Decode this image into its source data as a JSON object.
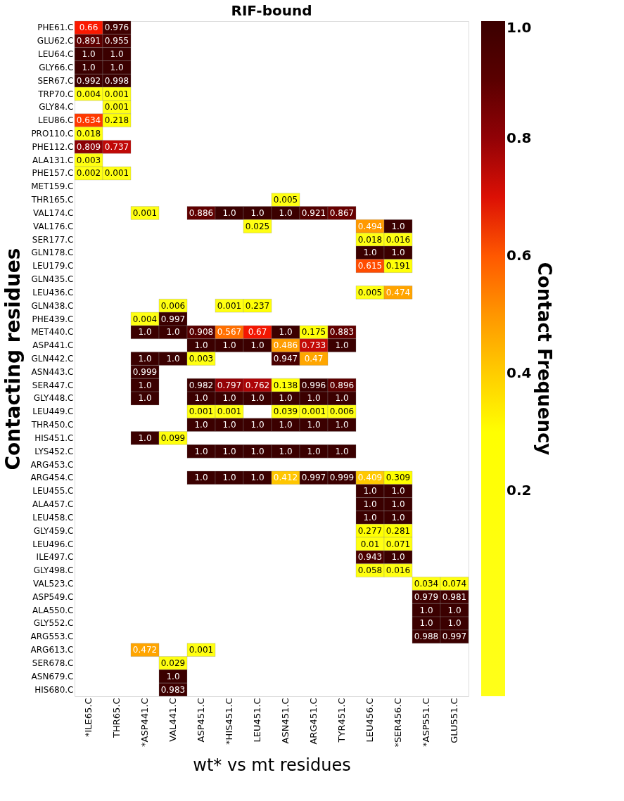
{
  "chart_data": {
    "type": "heatmap",
    "title": "RIF-bound",
    "xlabel": "wt* vs mt residues",
    "ylabel": "Contacting residues",
    "clabel": "Contact Frequency",
    "categories": [
      "*ILE65.C",
      "THR65.C",
      "*ASP441.C",
      "VAL441.C",
      "ASP451.C",
      "*HIS451.C",
      "LEU451.C",
      "ASN451.C",
      "ARG451.C",
      "TYR451.C",
      "LEU456.C",
      "*SER456.C",
      "*ASP551.C",
      "GLU551.C"
    ],
    "y_categories": [
      "PHE61.C",
      "GLU62.C",
      "LEU64.C",
      "GLY66.C",
      "SER67.C",
      "TRP70.C",
      "GLY84.C",
      "LEU86.C",
      "PRO110.C",
      "PHE112.C",
      "ALA131.C",
      "PHE157.C",
      "MET159.C",
      "THR165.C",
      "VAL174.C",
      "VAL176.C",
      "SER177.C",
      "GLN178.C",
      "LEU179.C",
      "GLN435.C",
      "LEU436.C",
      "GLN438.C",
      "PHE439.C",
      "MET440.C",
      "ASP441.C",
      "GLN442.C",
      "ASN443.C",
      "SER447.C",
      "GLY448.C",
      "LEU449.C",
      "THR450.C",
      "HIS451.C",
      "LYS452.C",
      "ARG453.C",
      "ARG454.C",
      "LEU455.C",
      "ALA457.C",
      "LEU458.C",
      "GLY459.C",
      "LEU496.C",
      "ILE497.C",
      "GLY498.C",
      "VAL523.C",
      "ASP549.C",
      "ALA550.C",
      "GLY552.C",
      "ARG553.C",
      "ARG613.C",
      "SER678.C",
      "ASN679.C",
      "HIS680.C"
    ],
    "cells": [
      [
        0.66,
        0.976,
        null,
        null,
        null,
        null,
        null,
        null,
        null,
        null,
        null,
        null,
        null,
        null
      ],
      [
        0.891,
        0.955,
        null,
        null,
        null,
        null,
        null,
        null,
        null,
        null,
        null,
        null,
        null,
        null
      ],
      [
        1.0,
        1.0,
        null,
        null,
        null,
        null,
        null,
        null,
        null,
        null,
        null,
        null,
        null,
        null
      ],
      [
        1.0,
        1.0,
        null,
        null,
        null,
        null,
        null,
        null,
        null,
        null,
        null,
        null,
        null,
        null
      ],
      [
        0.992,
        0.998,
        null,
        null,
        null,
        null,
        null,
        null,
        null,
        null,
        null,
        null,
        null,
        null
      ],
      [
        0.004,
        0.001,
        null,
        null,
        null,
        null,
        null,
        null,
        null,
        null,
        null,
        null,
        null,
        null
      ],
      [
        null,
        0.001,
        null,
        null,
        null,
        null,
        null,
        null,
        null,
        null,
        null,
        null,
        null,
        null
      ],
      [
        0.634,
        0.218,
        null,
        null,
        null,
        null,
        null,
        null,
        null,
        null,
        null,
        null,
        null,
        null
      ],
      [
        0.018,
        null,
        null,
        null,
        null,
        null,
        null,
        null,
        null,
        null,
        null,
        null,
        null,
        null
      ],
      [
        0.809,
        0.737,
        null,
        null,
        null,
        null,
        null,
        null,
        null,
        null,
        null,
        null,
        null,
        null
      ],
      [
        0.003,
        null,
        null,
        null,
        null,
        null,
        null,
        null,
        null,
        null,
        null,
        null,
        null,
        null
      ],
      [
        0.002,
        0.001,
        null,
        null,
        null,
        null,
        null,
        null,
        null,
        null,
        null,
        null,
        null,
        null
      ],
      [
        null,
        null,
        null,
        null,
        null,
        null,
        null,
        null,
        null,
        null,
        null,
        null,
        null,
        null
      ],
      [
        null,
        null,
        null,
        null,
        null,
        null,
        null,
        0.005,
        null,
        null,
        null,
        null,
        null,
        null
      ],
      [
        null,
        null,
        0.001,
        null,
        0.886,
        1.0,
        1.0,
        1.0,
        0.921,
        0.867,
        null,
        null,
        null,
        null
      ],
      [
        null,
        null,
        null,
        null,
        null,
        null,
        0.025,
        null,
        null,
        null,
        0.494,
        1.0,
        null,
        null
      ],
      [
        null,
        null,
        null,
        null,
        null,
        null,
        null,
        null,
        null,
        null,
        0.018,
        0.016,
        null,
        null
      ],
      [
        null,
        null,
        null,
        null,
        null,
        null,
        null,
        null,
        null,
        null,
        1.0,
        1.0,
        null,
        null
      ],
      [
        null,
        null,
        null,
        null,
        null,
        null,
        null,
        null,
        null,
        null,
        0.615,
        0.191,
        null,
        null
      ],
      [
        null,
        null,
        null,
        null,
        null,
        null,
        null,
        null,
        null,
        null,
        null,
        null,
        null,
        null
      ],
      [
        null,
        null,
        null,
        null,
        null,
        null,
        null,
        null,
        null,
        null,
        0.005,
        0.474,
        null,
        null
      ],
      [
        null,
        null,
        null,
        0.006,
        null,
        0.001,
        0.237,
        null,
        null,
        null,
        null,
        null,
        null,
        null
      ],
      [
        null,
        null,
        0.004,
        0.997,
        null,
        null,
        null,
        null,
        null,
        null,
        null,
        null,
        null,
        null
      ],
      [
        null,
        null,
        1.0,
        1.0,
        0.908,
        0.567,
        0.67,
        1.0,
        0.175,
        0.883,
        null,
        null,
        null,
        null
      ],
      [
        null,
        null,
        null,
        null,
        1.0,
        1.0,
        1.0,
        0.486,
        0.733,
        1.0,
        null,
        null,
        null,
        null
      ],
      [
        null,
        null,
        1.0,
        1.0,
        0.003,
        null,
        null,
        0.947,
        0.47,
        null,
        null,
        null,
        null,
        null
      ],
      [
        null,
        null,
        0.999,
        null,
        null,
        null,
        null,
        null,
        null,
        null,
        null,
        null,
        null,
        null
      ],
      [
        null,
        null,
        1.0,
        null,
        0.982,
        0.797,
        0.762,
        0.138,
        0.996,
        0.896,
        null,
        null,
        null,
        null
      ],
      [
        null,
        null,
        1.0,
        null,
        1.0,
        1.0,
        1.0,
        1.0,
        1.0,
        1.0,
        null,
        null,
        null,
        null
      ],
      [
        null,
        null,
        null,
        null,
        0.001,
        0.001,
        null,
        0.039,
        0.001,
        0.006,
        null,
        null,
        null,
        null
      ],
      [
        null,
        null,
        null,
        null,
        1.0,
        1.0,
        1.0,
        1.0,
        1.0,
        1.0,
        null,
        null,
        null,
        null
      ],
      [
        null,
        null,
        1.0,
        0.099,
        null,
        null,
        null,
        null,
        null,
        null,
        null,
        null,
        null,
        null
      ],
      [
        null,
        null,
        null,
        null,
        1.0,
        1.0,
        1.0,
        1.0,
        1.0,
        1.0,
        null,
        null,
        null,
        null
      ],
      [
        null,
        null,
        null,
        null,
        null,
        null,
        null,
        null,
        null,
        null,
        null,
        null,
        null,
        null
      ],
      [
        null,
        null,
        null,
        null,
        1.0,
        1.0,
        1.0,
        0.412,
        0.997,
        0.999,
        0.409,
        0.309,
        null,
        null
      ],
      [
        null,
        null,
        null,
        null,
        null,
        null,
        null,
        null,
        null,
        null,
        1.0,
        1.0,
        null,
        null
      ],
      [
        null,
        null,
        null,
        null,
        null,
        null,
        null,
        null,
        null,
        null,
        1.0,
        1.0,
        null,
        null
      ],
      [
        null,
        null,
        null,
        null,
        null,
        null,
        null,
        null,
        null,
        null,
        1.0,
        1.0,
        null,
        null
      ],
      [
        null,
        null,
        null,
        null,
        null,
        null,
        null,
        null,
        null,
        null,
        0.277,
        0.281,
        null,
        null
      ],
      [
        null,
        null,
        null,
        null,
        null,
        null,
        null,
        null,
        null,
        null,
        0.01,
        0.071,
        null,
        null
      ],
      [
        null,
        null,
        null,
        null,
        null,
        null,
        null,
        null,
        null,
        null,
        0.943,
        1.0,
        null,
        null
      ],
      [
        null,
        null,
        null,
        null,
        null,
        null,
        null,
        null,
        null,
        null,
        0.058,
        0.016,
        null,
        null
      ],
      [
        null,
        null,
        null,
        null,
        null,
        null,
        null,
        null,
        null,
        null,
        null,
        null,
        0.034,
        0.074
      ],
      [
        null,
        null,
        null,
        null,
        null,
        null,
        null,
        null,
        null,
        null,
        null,
        null,
        0.979,
        0.981
      ],
      [
        null,
        null,
        null,
        null,
        null,
        null,
        null,
        null,
        null,
        null,
        null,
        null,
        1.0,
        1.0
      ],
      [
        null,
        null,
        null,
        null,
        null,
        null,
        null,
        null,
        null,
        null,
        null,
        null,
        1.0,
        1.0
      ],
      [
        null,
        null,
        null,
        null,
        null,
        null,
        null,
        null,
        null,
        null,
        null,
        null,
        0.988,
        0.997
      ],
      [
        null,
        null,
        0.472,
        null,
        0.001,
        null,
        null,
        null,
        null,
        null,
        null,
        null,
        null,
        null
      ],
      [
        null,
        null,
        null,
        0.029,
        null,
        null,
        null,
        null,
        null,
        null,
        null,
        null,
        null,
        null
      ],
      [
        null,
        null,
        null,
        1.0,
        null,
        null,
        null,
        null,
        null,
        null,
        null,
        null,
        null,
        null
      ],
      [
        null,
        null,
        null,
        0.983,
        null,
        null,
        null,
        null,
        null,
        null,
        null,
        null,
        null,
        null
      ]
    ],
    "cell_labels": [
      [
        "0.66",
        "0.976",
        null,
        null,
        null,
        null,
        null,
        null,
        null,
        null,
        null,
        null,
        null,
        null
      ],
      [
        "0.891",
        "0.955",
        null,
        null,
        null,
        null,
        null,
        null,
        null,
        null,
        null,
        null,
        null,
        null
      ],
      [
        "1.0",
        "1.0",
        null,
        null,
        null,
        null,
        null,
        null,
        null,
        null,
        null,
        null,
        null,
        null
      ],
      [
        "1.0",
        "1.0",
        null,
        null,
        null,
        null,
        null,
        null,
        null,
        null,
        null,
        null,
        null,
        null
      ],
      [
        "0.992",
        "0.998",
        null,
        null,
        null,
        null,
        null,
        null,
        null,
        null,
        null,
        null,
        null,
        null
      ],
      [
        "0.004",
        "0.001",
        null,
        null,
        null,
        null,
        null,
        null,
        null,
        null,
        null,
        null,
        null,
        null
      ],
      [
        null,
        "0.001",
        null,
        null,
        null,
        null,
        null,
        null,
        null,
        null,
        null,
        null,
        null,
        null
      ],
      [
        "0.634",
        "0.218",
        null,
        null,
        null,
        null,
        null,
        null,
        null,
        null,
        null,
        null,
        null,
        null
      ],
      [
        "0.018",
        null,
        null,
        null,
        null,
        null,
        null,
        null,
        null,
        null,
        null,
        null,
        null,
        null
      ],
      [
        "0.809",
        "0.737",
        null,
        null,
        null,
        null,
        null,
        null,
        null,
        null,
        null,
        null,
        null,
        null
      ],
      [
        "0.003",
        null,
        null,
        null,
        null,
        null,
        null,
        null,
        null,
        null,
        null,
        null,
        null,
        null
      ],
      [
        "0.002",
        "0.001",
        null,
        null,
        null,
        null,
        null,
        null,
        null,
        null,
        null,
        null,
        null,
        null
      ],
      [
        null,
        null,
        null,
        null,
        null,
        null,
        null,
        null,
        null,
        null,
        null,
        null,
        null,
        null
      ],
      [
        null,
        null,
        null,
        null,
        null,
        null,
        null,
        "0.005",
        null,
        null,
        null,
        null,
        null,
        null
      ],
      [
        null,
        null,
        "0.001",
        null,
        "0.886",
        "1.0",
        "1.0",
        "1.0",
        "0.921",
        "0.867",
        null,
        null,
        null,
        null
      ],
      [
        null,
        null,
        null,
        null,
        null,
        null,
        "0.025",
        null,
        null,
        null,
        "0.494",
        "1.0",
        null,
        null
      ],
      [
        null,
        null,
        null,
        null,
        null,
        null,
        null,
        null,
        null,
        null,
        "0.018",
        "0.016",
        null,
        null
      ],
      [
        null,
        null,
        null,
        null,
        null,
        null,
        null,
        null,
        null,
        null,
        "1.0",
        "1.0",
        null,
        null
      ],
      [
        null,
        null,
        null,
        null,
        null,
        null,
        null,
        null,
        null,
        null,
        "0.615",
        "0.191",
        null,
        null
      ],
      [
        null,
        null,
        null,
        null,
        null,
        null,
        null,
        null,
        null,
        null,
        null,
        null,
        null,
        null
      ],
      [
        null,
        null,
        null,
        null,
        null,
        null,
        null,
        null,
        null,
        null,
        "0.005",
        "0.474",
        null,
        null
      ],
      [
        null,
        null,
        null,
        "0.006",
        null,
        "0.001",
        "0.237",
        null,
        null,
        null,
        null,
        null,
        null,
        null
      ],
      [
        null,
        null,
        "0.004",
        "0.997",
        null,
        null,
        null,
        null,
        null,
        null,
        null,
        null,
        null,
        null
      ],
      [
        null,
        null,
        "1.0",
        "1.0",
        "0.908",
        "0.567",
        "0.67",
        "1.0",
        "0.175",
        "0.883",
        null,
        null,
        null,
        null
      ],
      [
        null,
        null,
        null,
        null,
        "1.0",
        "1.0",
        "1.0",
        "0.486",
        "0.733",
        "1.0",
        null,
        null,
        null,
        null
      ],
      [
        null,
        null,
        "1.0",
        "1.0",
        "0.003",
        null,
        null,
        "0.947",
        "0.47",
        null,
        null,
        null,
        null,
        null
      ],
      [
        null,
        null,
        "0.999",
        null,
        null,
        null,
        null,
        null,
        null,
        null,
        null,
        null,
        null,
        null
      ],
      [
        null,
        null,
        "1.0",
        null,
        "0.982",
        "0.797",
        "0.762",
        "0.138",
        "0.996",
        "0.896",
        null,
        null,
        null,
        null
      ],
      [
        null,
        null,
        "1.0",
        null,
        "1.0",
        "1.0",
        "1.0",
        "1.0",
        "1.0",
        "1.0",
        null,
        null,
        null,
        null
      ],
      [
        null,
        null,
        null,
        null,
        "0.001",
        "0.001",
        null,
        "0.039",
        "0.001",
        "0.006",
        null,
        null,
        null,
        null
      ],
      [
        null,
        null,
        null,
        null,
        "1.0",
        "1.0",
        "1.0",
        "1.0",
        "1.0",
        "1.0",
        null,
        null,
        null,
        null
      ],
      [
        null,
        null,
        "1.0",
        "0.099",
        null,
        null,
        null,
        null,
        null,
        null,
        null,
        null,
        null,
        null
      ],
      [
        null,
        null,
        null,
        null,
        "1.0",
        "1.0",
        "1.0",
        "1.0",
        "1.0",
        "1.0",
        null,
        null,
        null,
        null
      ],
      [
        null,
        null,
        null,
        null,
        null,
        null,
        null,
        null,
        null,
        null,
        null,
        null,
        null,
        null
      ],
      [
        null,
        null,
        null,
        null,
        "1.0",
        "1.0",
        "1.0",
        "0.412",
        "0.997",
        "0.999",
        "0.409",
        "0.309",
        null,
        null
      ],
      [
        null,
        null,
        null,
        null,
        null,
        null,
        null,
        null,
        null,
        null,
        "1.0",
        "1.0",
        null,
        null
      ],
      [
        null,
        null,
        null,
        null,
        null,
        null,
        null,
        null,
        null,
        null,
        "1.0",
        "1.0",
        null,
        null
      ],
      [
        null,
        null,
        null,
        null,
        null,
        null,
        null,
        null,
        null,
        null,
        "1.0",
        "1.0",
        null,
        null
      ],
      [
        null,
        null,
        null,
        null,
        null,
        null,
        null,
        null,
        null,
        null,
        "0.277",
        "0.281",
        null,
        null
      ],
      [
        null,
        null,
        null,
        null,
        null,
        null,
        null,
        null,
        null,
        null,
        "0.01",
        "0.071",
        null,
        null
      ],
      [
        null,
        null,
        null,
        null,
        null,
        null,
        null,
        null,
        null,
        null,
        "0.943",
        "1.0",
        null,
        null
      ],
      [
        null,
        null,
        null,
        null,
        null,
        null,
        null,
        null,
        null,
        null,
        "0.058",
        "0.016",
        null,
        null
      ],
      [
        null,
        null,
        null,
        null,
        null,
        null,
        null,
        null,
        null,
        null,
        null,
        null,
        "0.034",
        "0.074"
      ],
      [
        null,
        null,
        null,
        null,
        null,
        null,
        null,
        null,
        null,
        null,
        null,
        null,
        "0.979",
        "0.981"
      ],
      [
        null,
        null,
        null,
        null,
        null,
        null,
        null,
        null,
        null,
        null,
        null,
        null,
        "1.0",
        "1.0"
      ],
      [
        null,
        null,
        null,
        null,
        null,
        null,
        null,
        null,
        null,
        null,
        null,
        null,
        "1.0",
        "1.0"
      ],
      [
        null,
        null,
        null,
        null,
        null,
        null,
        null,
        null,
        null,
        null,
        null,
        null,
        "0.988",
        "0.997"
      ],
      [
        null,
        null,
        "0.472",
        null,
        "0.001",
        null,
        null,
        null,
        null,
        null,
        null,
        null,
        null,
        null
      ],
      [
        null,
        null,
        null,
        "0.029",
        null,
        null,
        null,
        null,
        null,
        null,
        null,
        null,
        null,
        null
      ],
      [
        null,
        null,
        null,
        "1.0",
        null,
        null,
        null,
        null,
        null,
        null,
        null,
        null,
        null,
        null
      ],
      [
        null,
        null,
        null,
        "0.983",
        null,
        null,
        null,
        null,
        null,
        null,
        null,
        null,
        null,
        null
      ]
    ],
    "clim": [
      -0.15,
      1.0
    ],
    "cticks": [
      0.2,
      0.4,
      0.6,
      0.8,
      {
        "value": 1.0,
        "label": "1.0"
      }
    ],
    "grid": false
  }
}
